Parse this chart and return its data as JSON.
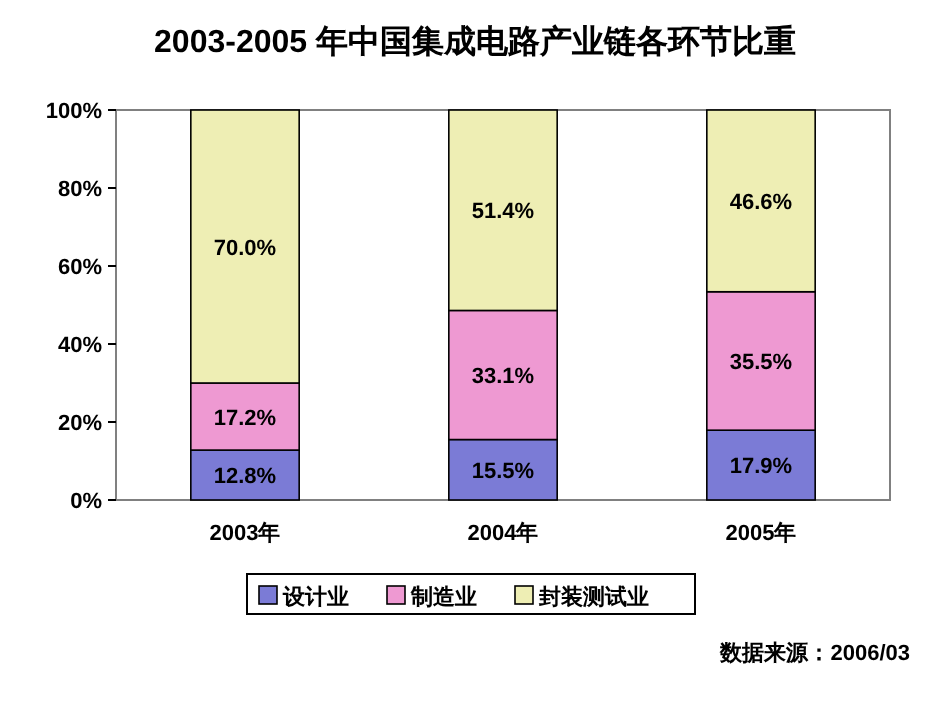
{
  "chart_data": {
    "type": "bar",
    "stacked": true,
    "title": "2003-2005 年中国集成电路产业链各环节比重",
    "categories": [
      "2003年",
      "2004年",
      "2005年"
    ],
    "series": [
      {
        "name": "设计业",
        "color": "#7b7bd6",
        "values": [
          12.8,
          15.5,
          17.9
        ],
        "value_labels": [
          "12.8%",
          "15.5%",
          "17.9%"
        ]
      },
      {
        "name": "制造业",
        "color": "#ee99d2",
        "values": [
          17.2,
          33.1,
          35.5
        ],
        "value_labels": [
          "17.2%",
          "33.1%",
          "35.5%"
        ]
      },
      {
        "name": "封装测试业",
        "color": "#eeeeb4",
        "values": [
          70.0,
          51.4,
          46.6
        ],
        "value_labels": [
          "70.0%",
          "51.4%",
          "46.6%"
        ]
      }
    ],
    "ylim": [
      0,
      100
    ],
    "yticks": [
      {
        "value": 0,
        "label": "0%"
      },
      {
        "value": 20,
        "label": "20%"
      },
      {
        "value": 40,
        "label": "40%"
      },
      {
        "value": 60,
        "label": "60%"
      },
      {
        "value": 80,
        "label": "80%"
      },
      {
        "value": 100,
        "label": "100%"
      }
    ],
    "grid": false,
    "legend": "bottom",
    "annotations": [
      "数据来源：2006/03"
    ]
  }
}
